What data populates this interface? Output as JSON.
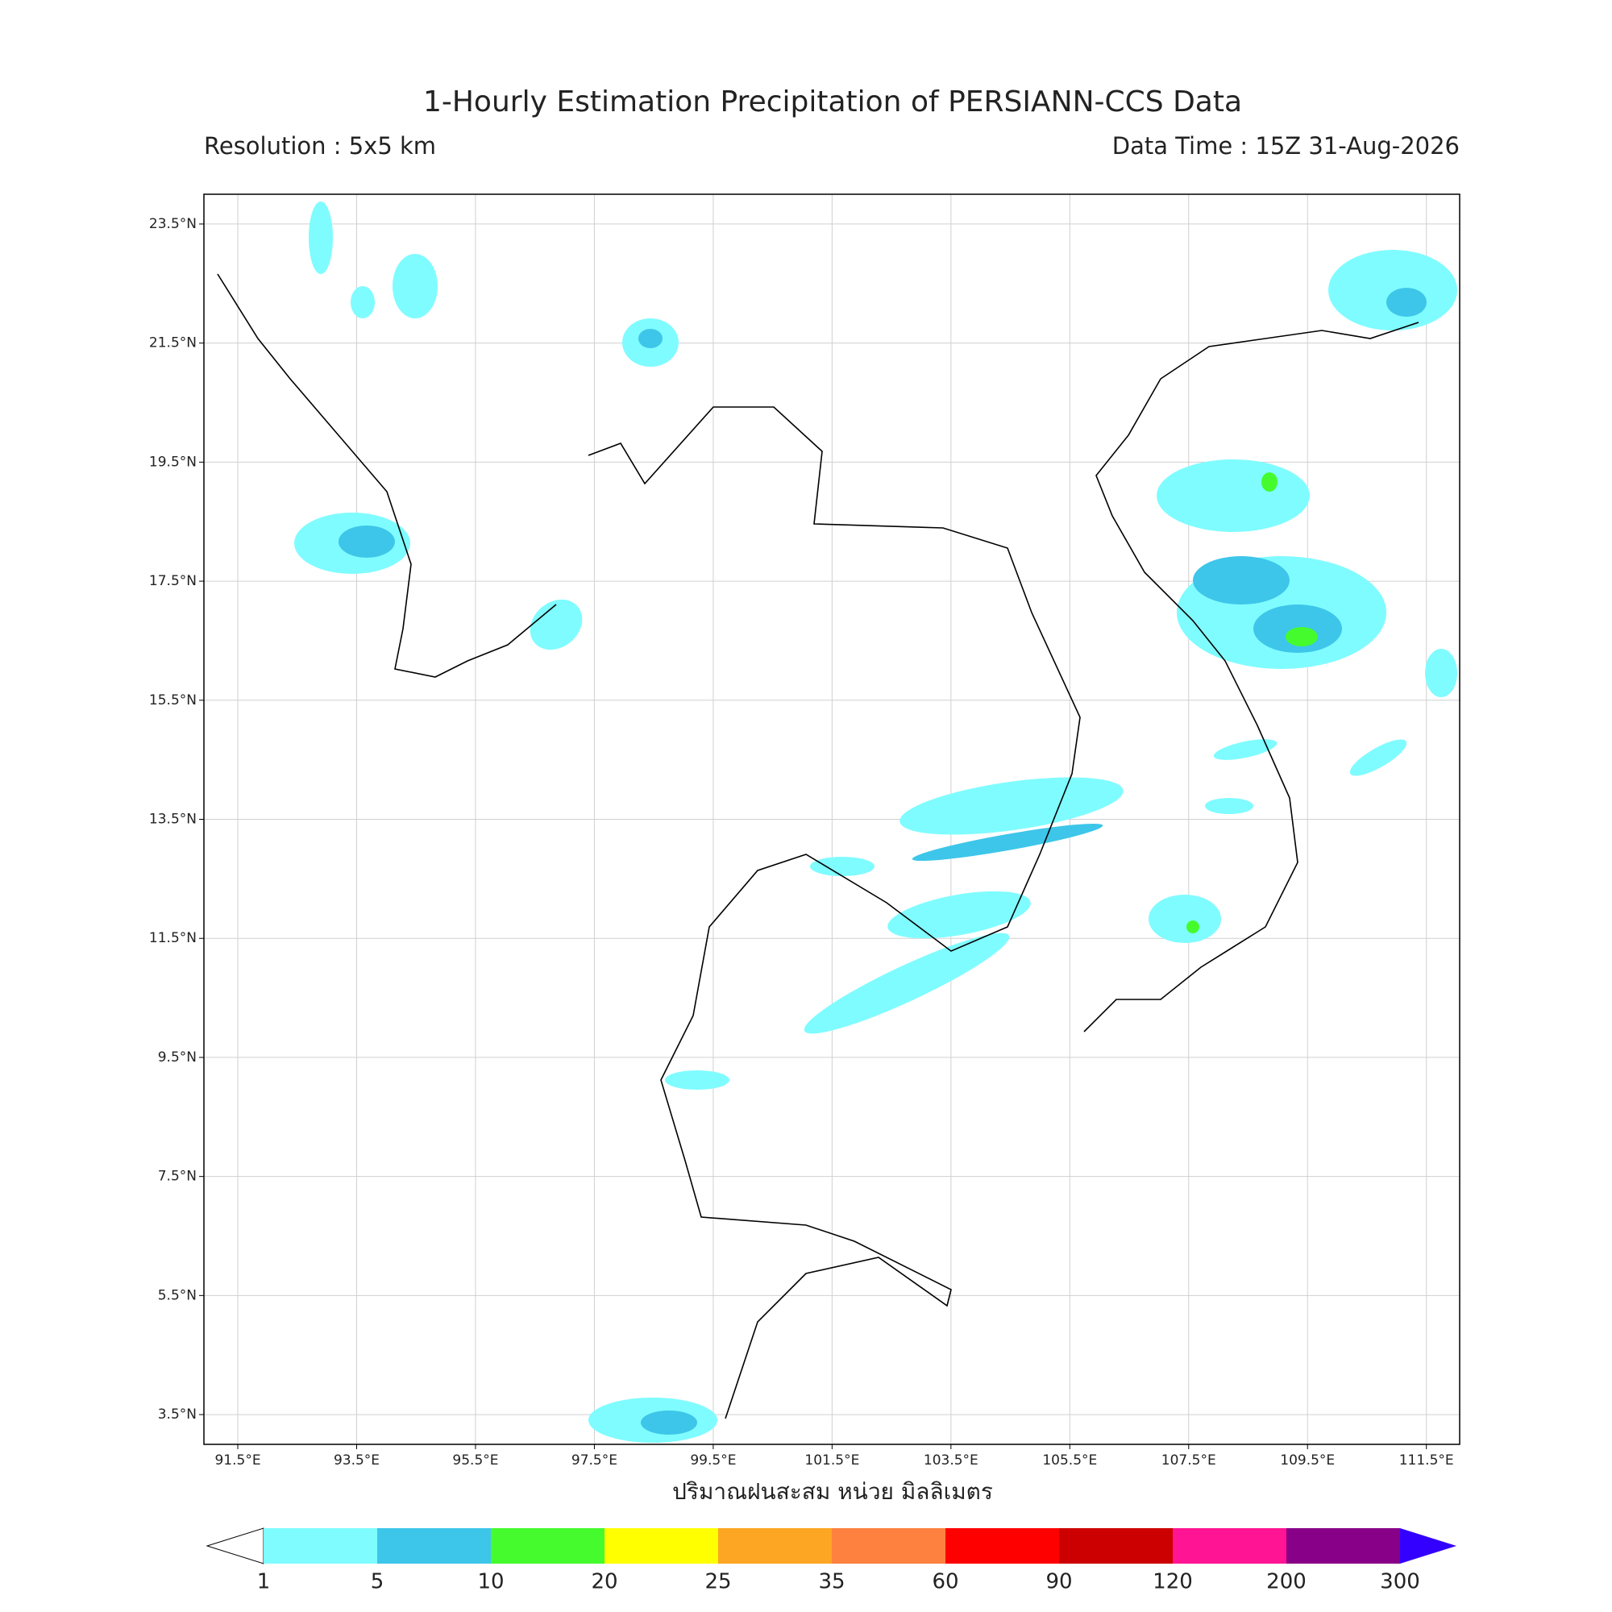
{
  "header": {
    "title": "1-Hourly Estimation Precipitation of PERSIANN-CCS Data",
    "resolution": "Resolution : 5x5 km",
    "data_time": "Data Time : 15Z 31-Aug-2026"
  },
  "map": {
    "lonlim": [
      90.93,
      112.06
    ],
    "latlim": [
      3.0,
      24.0
    ],
    "lon_ticks": [
      {
        "value": 91.5,
        "label": "91.5°E"
      },
      {
        "value": 93.5,
        "label": "93.5°E"
      },
      {
        "value": 95.5,
        "label": "95.5°E"
      },
      {
        "value": 97.5,
        "label": "97.5°E"
      },
      {
        "value": 99.5,
        "label": "99.5°E"
      },
      {
        "value": 101.5,
        "label": "101.5°E"
      },
      {
        "value": 103.5,
        "label": "103.5°E"
      },
      {
        "value": 105.5,
        "label": "105.5°E"
      },
      {
        "value": 107.5,
        "label": "107.5°E"
      },
      {
        "value": 109.5,
        "label": "109.5°E"
      },
      {
        "value": 111.5,
        "label": "111.5°E"
      }
    ],
    "lat_ticks": [
      {
        "value": 23.5,
        "label": "23.5°N"
      },
      {
        "value": 21.5,
        "label": "21.5°N"
      },
      {
        "value": 19.5,
        "label": "19.5°N"
      },
      {
        "value": 17.5,
        "label": "17.5°N"
      },
      {
        "value": 15.5,
        "label": "15.5°N"
      },
      {
        "value": 13.5,
        "label": "13.5°N"
      },
      {
        "value": 11.5,
        "label": "11.5°N"
      },
      {
        "value": 9.5,
        "label": "9.5°N"
      },
      {
        "value": 7.5,
        "label": "7.5°N"
      },
      {
        "value": 5.5,
        "label": "5.5°N"
      },
      {
        "value": 3.5,
        "label": "3.5°N"
      }
    ],
    "grid": true
  },
  "colorbar": {
    "label": "ปริมาณฝนสะสม หน่วย มิลลิเมตร",
    "levels": [
      1,
      5,
      10,
      20,
      25,
      35,
      60,
      90,
      120,
      200,
      300
    ],
    "colors": [
      "#7ffcff",
      "#3dc6e9",
      "#45fb2e",
      "#ffff00",
      "#fca624",
      "#fe8140",
      "#ff0000",
      "#cc0000",
      "#ff1493",
      "#880088"
    ],
    "under_color": "#ffffff",
    "over_color": "#3300ff"
  }
}
